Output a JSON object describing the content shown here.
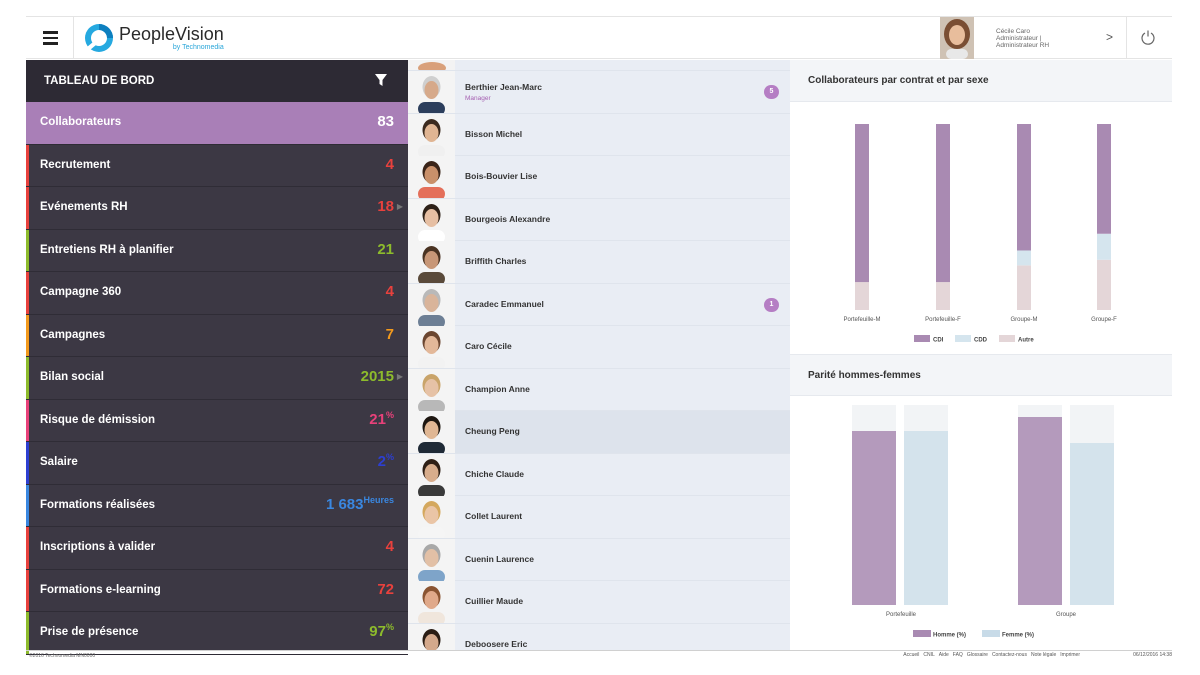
{
  "header": {
    "app_name": "PeopleVision",
    "app_by": "by Technomedia",
    "user_name": "Cécile Caro",
    "user_role1": "Administrateur |",
    "user_role2": "Administrateur RH"
  },
  "nav": {
    "title": "TABLEAU DE BORD",
    "items": [
      {
        "label": "Collaborateurs",
        "value": "83",
        "unit": "",
        "color": "#ffffff",
        "bar": "#a97fb7",
        "active": true,
        "arrow": false
      },
      {
        "label": "Recrutement",
        "value": "4",
        "unit": "",
        "color": "#e8413d",
        "bar": "#e8413d",
        "active": false,
        "arrow": false
      },
      {
        "label": "Evénements RH",
        "value": "18",
        "unit": "",
        "color": "#e8413d",
        "bar": "#e8413d",
        "active": false,
        "arrow": true
      },
      {
        "label": "Entretiens RH à planifier",
        "value": "21",
        "unit": "",
        "color": "#8dbb2c",
        "bar": "#8dbb2c",
        "active": false,
        "arrow": false
      },
      {
        "label": "Campagne 360",
        "value": "4",
        "unit": "",
        "color": "#e8413d",
        "bar": "#e8413d",
        "active": false,
        "arrow": false
      },
      {
        "label": "Campagnes",
        "value": "7",
        "unit": "",
        "color": "#f39a1d",
        "bar": "#f39a1d",
        "active": false,
        "arrow": false
      },
      {
        "label": "Bilan social",
        "value": "2015",
        "unit": "",
        "color": "#8dbb2c",
        "bar": "#8dbb2c",
        "active": false,
        "arrow": true
      },
      {
        "label": "Risque de démission",
        "value": "21",
        "unit": "%",
        "color": "#e8417a",
        "bar": "#e8417a",
        "active": false,
        "arrow": false
      },
      {
        "label": "Salaire",
        "value": "2",
        "unit": "%",
        "color": "#2d3fd1",
        "bar": "#2d3fd1",
        "active": false,
        "arrow": false
      },
      {
        "label": "Formations réalisées",
        "value": "1 683",
        "unit": "Heures",
        "color": "#3a87e0",
        "bar": "#3a87e0",
        "active": false,
        "arrow": false
      },
      {
        "label": "Inscriptions à valider",
        "value": "4",
        "unit": "",
        "color": "#e8413d",
        "bar": "#e8413d",
        "active": false,
        "arrow": false
      },
      {
        "label": "Formations e-learning",
        "value": "72",
        "unit": "",
        "color": "#e8413d",
        "bar": "#e8413d",
        "active": false,
        "arrow": false
      },
      {
        "label": "Prise de présence",
        "value": "97",
        "unit": "%",
        "color": "#8dbb2c",
        "bar": "#8dbb2c",
        "active": false,
        "arrow": false
      }
    ]
  },
  "people": [
    {
      "name": "Berthier Jean-Marc",
      "role": "Manager",
      "badge": "5",
      "skin": "#d6a98a",
      "hair": "#cfcfcf",
      "shirt": "#2c3e5c"
    },
    {
      "name": "Bisson Michel",
      "role": "",
      "badge": "",
      "skin": "#e0b593",
      "hair": "#3b2a1e",
      "shirt": "#f0f0f0"
    },
    {
      "name": "Bois-Bouvier Lise",
      "role": "",
      "badge": "",
      "skin": "#c9906a",
      "hair": "#3a2418",
      "shirt": "#e46f5a"
    },
    {
      "name": "Bourgeois Alexandre",
      "role": "",
      "badge": "",
      "skin": "#e6bfa3",
      "hair": "#2e2118",
      "shirt": "#ffffff"
    },
    {
      "name": "Briffith Charles",
      "role": "",
      "badge": "",
      "skin": "#c89777",
      "hair": "#4a3322",
      "shirt": "#5a4a3a"
    },
    {
      "name": "Caradec Emmanuel",
      "role": "",
      "badge": "1",
      "skin": "#d9b49a",
      "hair": "#b9b9b9",
      "shirt": "#6d7f95"
    },
    {
      "name": "Caro Cécile",
      "role": "",
      "badge": "",
      "skin": "#e3b899",
      "hair": "#6b4630",
      "shirt": "#f2f2f2"
    },
    {
      "name": "Champion Anne",
      "role": "",
      "badge": "",
      "skin": "#e6c2a6",
      "hair": "#c9a46a",
      "shirt": "#b8b8b8"
    },
    {
      "name": "Cheung Peng",
      "role": "",
      "badge": "",
      "skin": "#e0b794",
      "hair": "#1d1610",
      "shirt": "#1f2a36"
    },
    {
      "name": "Chiche Claude",
      "role": "",
      "badge": "",
      "skin": "#d8ad8c",
      "hair": "#2f2016",
      "shirt": "#3a3a3a"
    },
    {
      "name": "Collet Laurent",
      "role": "",
      "badge": "",
      "skin": "#eac5a6",
      "hair": "#d4a85e",
      "shirt": "#f5f5f5"
    },
    {
      "name": "Cuenin Laurence",
      "role": "",
      "badge": "",
      "skin": "#e2c0a6",
      "hair": "#a8a8a8",
      "shirt": "#7ea4c9"
    },
    {
      "name": "Cuillier Maude",
      "role": "",
      "badge": "",
      "skin": "#e0a98a",
      "hair": "#8a5432",
      "shirt": "#f0e6dc"
    },
    {
      "name": "Deboosere Eric",
      "role": "",
      "badge": "",
      "skin": "#d4a98c",
      "hair": "#2a1d14",
      "shirt": "#4a4a4a"
    }
  ],
  "charts": {
    "contract_title": "Collaborateurs par contrat et par sexe",
    "parity_title": "Parité hommes-femmes"
  },
  "chart_data": [
    {
      "type": "bar",
      "stacked": true,
      "title": "Collaborateurs par contrat et par sexe",
      "categories": [
        "Portefeuille-M",
        "Portefeuille-F",
        "Groupe-M",
        "Groupe-F"
      ],
      "series": [
        {
          "name": "CDI",
          "values": [
            85,
            85,
            68,
            59
          ],
          "color": "#a98ab2"
        },
        {
          "name": "CDD",
          "values": [
            0,
            0,
            8,
            14
          ],
          "color": "#d5e5ee"
        },
        {
          "name": "Autre",
          "values": [
            15,
            15,
            24,
            27
          ],
          "color": "#e4d6d8"
        }
      ],
      "ylim": [
        0,
        100
      ],
      "legend": "bottom"
    },
    {
      "type": "bar",
      "title": "Parité hommes-femmes",
      "categories": [
        "Portefeuille",
        "Groupe"
      ],
      "series": [
        {
          "name": "Homme (%)",
          "values": [
            87,
            94
          ],
          "color": "#a98ab2"
        },
        {
          "name": "Femme (%)",
          "values": [
            87,
            81
          ],
          "color": "#c8dbe8"
        }
      ],
      "ylim": [
        0,
        100
      ],
      "legend": "bottom"
    }
  ],
  "footer": {
    "copyright": "©2016 Technomedia MN0000",
    "links": [
      "Accueil",
      "CNIL",
      "Aide",
      "FAQ",
      "Glossaire",
      "Contactez-nous",
      "Note légale",
      "Imprimer"
    ],
    "date": "06/12/2016 14:38"
  }
}
